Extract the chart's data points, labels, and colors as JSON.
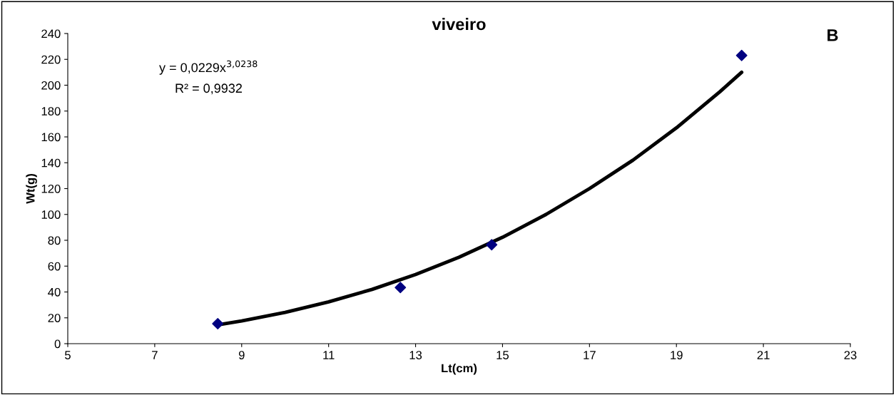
{
  "chart_data": {
    "type": "scatter",
    "title": "viveiro",
    "xlabel": "Lt(cm)",
    "ylabel": "Wt(g)",
    "series": [
      {
        "color": "#000080",
        "marker": "diamond",
        "x": [
          8.45,
          12.65,
          14.75,
          20.5
        ],
        "values": [
          15.5,
          43.5,
          76.5,
          223
        ]
      },
      {
        "type": "line",
        "color": "#000000",
        "marker": "none",
        "line_style": "solid",
        "x": [
          8.45,
          9,
          10,
          11,
          12,
          13,
          14,
          15,
          16,
          17,
          18,
          19,
          20,
          20.5
        ],
        "values": [
          14.5,
          17.6,
          24.2,
          32.3,
          42.0,
          53.5,
          66.9,
          82.3,
          100,
          120,
          142,
          167,
          195,
          210
        ]
      }
    ],
    "annotations": [
      "y = 0,0229x$^{3,0238}$",
      "R² = 0,9932",
      "B"
    ],
    "xlim": [
      5,
      23
    ],
    "xticks": [
      5,
      7,
      9,
      11,
      13,
      15,
      17,
      19,
      21,
      23
    ],
    "ylim": [
      0,
      240
    ],
    "yticks": [
      0,
      20,
      40,
      60,
      80,
      100,
      120,
      140,
      160,
      180,
      200,
      220,
      240
    ],
    "grid": false,
    "legend": false
  }
}
